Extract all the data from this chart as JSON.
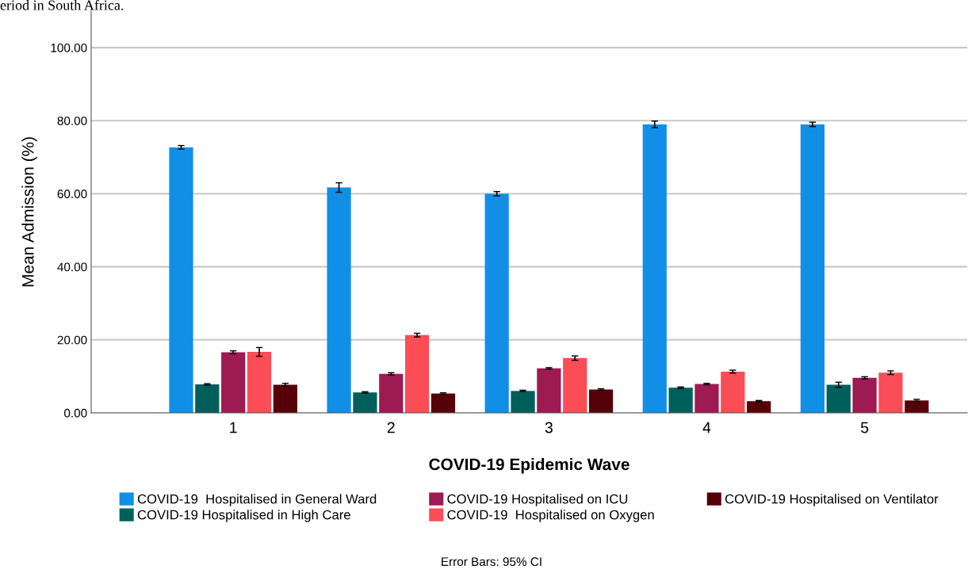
{
  "chart_data": {
    "type": "bar",
    "xlabel": "COVID-19 Epidemic Wave",
    "ylabel": "Mean Admission (%)",
    "categories": [
      "1",
      "2",
      "3",
      "4",
      "5"
    ],
    "series": [
      {
        "name": "COVID-19  Hospitalised in General Ward",
        "color": "#118fe6",
        "values": [
          72.7,
          61.7,
          60.0,
          79.0,
          79.0
        ],
        "errors": [
          0.5,
          1.3,
          0.6,
          0.9,
          0.6
        ]
      },
      {
        "name": "COVID-19 Hospitalised in High Care",
        "color": "#005f5b",
        "values": [
          7.8,
          5.6,
          6.0,
          6.9,
          7.7
        ],
        "errors": [
          0.2,
          0.2,
          0.2,
          0.2,
          0.7
        ]
      },
      {
        "name": "COVID-19 Hospitalised on ICU",
        "color": "#9e1a52",
        "values": [
          16.6,
          10.7,
          12.2,
          7.9,
          9.6
        ],
        "errors": [
          0.4,
          0.3,
          0.2,
          0.2,
          0.3
        ]
      },
      {
        "name": "COVID-19  Hospitalised on Oxygen",
        "color": "#fa4d55",
        "values": [
          16.7,
          21.3,
          15.0,
          11.3,
          11.0
        ],
        "errors": [
          1.2,
          0.5,
          0.6,
          0.4,
          0.5
        ]
      },
      {
        "name": "COVID-19 Hospitalised on Ventilator",
        "color": "#560108",
        "values": [
          7.7,
          5.3,
          6.4,
          3.2,
          3.4
        ],
        "errors": [
          0.4,
          0.2,
          0.2,
          0.2,
          0.3
        ]
      }
    ],
    "ylim": [
      0,
      110
    ],
    "yticks": [
      {
        "value": 0,
        "label": "0.00"
      },
      {
        "value": 20,
        "label": "20.00"
      },
      {
        "value": 40,
        "label": "40.00"
      },
      {
        "value": 60,
        "label": "60.00"
      },
      {
        "value": 80,
        "label": "80.00"
      },
      {
        "value": 100,
        "label": "100.00"
      }
    ],
    "grid": "y",
    "legend": "bottom",
    "annotations": [
      "eriod in South Africa.",
      "Error Bars: 95% CI"
    ]
  }
}
